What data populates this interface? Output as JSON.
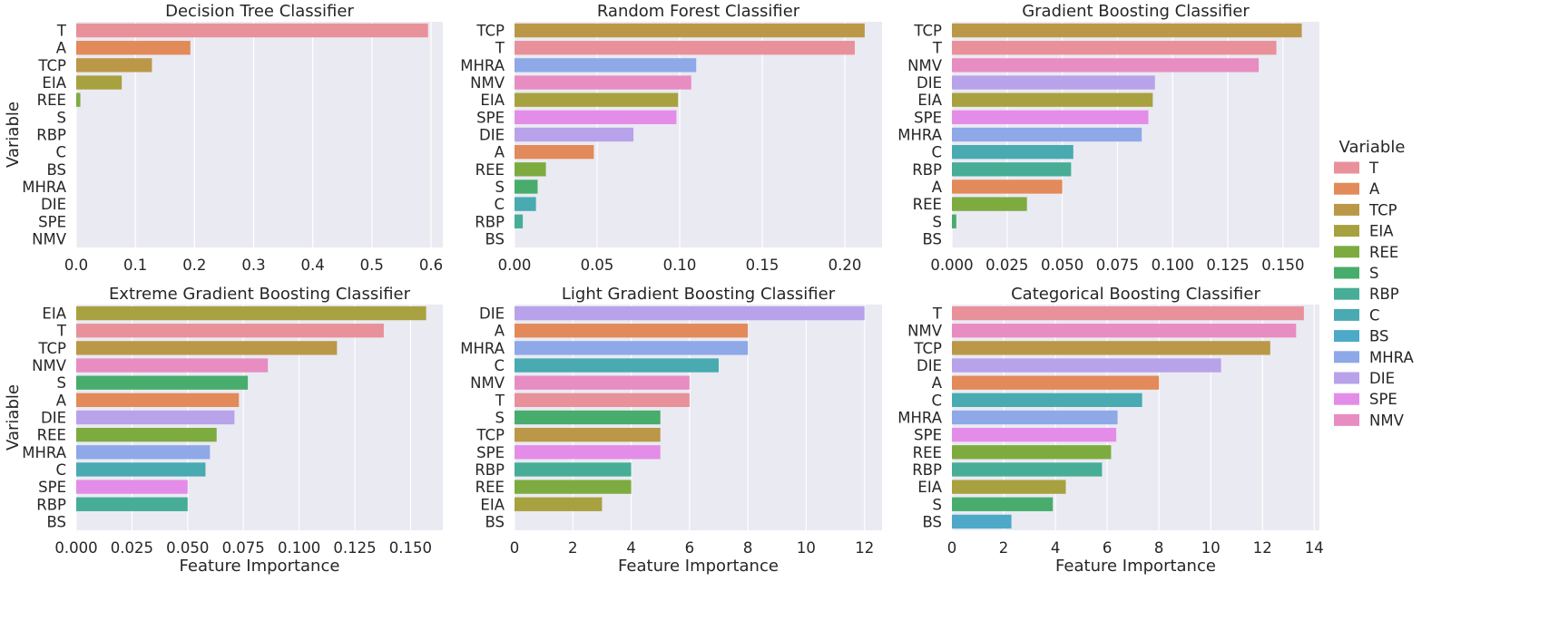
{
  "legend": {
    "title": "Variable",
    "items": [
      "T",
      "A",
      "TCP",
      "EIA",
      "REE",
      "S",
      "RBP",
      "C",
      "BS",
      "MHRA",
      "DIE",
      "SPE",
      "NMV"
    ]
  },
  "colors": {
    "T": "#e8919b",
    "A": "#e28a59",
    "TCP": "#bb9847",
    "EIA": "#a8a13f",
    "REE": "#7eab40",
    "S": "#48ad6c",
    "RBP": "#47ad97",
    "C": "#49aab1",
    "BS": "#4ea9c9",
    "MHRA": "#8ea8e8",
    "DIE": "#b8a2ea",
    "SPE": "#e48de8",
    "NMV": "#e78dc2"
  },
  "chart_data": [
    {
      "type": "bar",
      "orientation": "horizontal",
      "title": "Decision Tree Classifier",
      "xlabel": "",
      "ylabel": "Variable",
      "xlim": [
        0,
        0.62
      ],
      "xticks": [
        0.0,
        0.1,
        0.2,
        0.3,
        0.4,
        0.5,
        0.6
      ],
      "xtick_labels": [
        "0.0",
        "0.1",
        "0.2",
        "0.3",
        "0.4",
        "0.5",
        "0.6"
      ],
      "categories": [
        "T",
        "A",
        "TCP",
        "EIA",
        "REE",
        "S",
        "RBP",
        "C",
        "BS",
        "MHRA",
        "DIE",
        "SPE",
        "NMV"
      ],
      "values": [
        0.595,
        0.193,
        0.128,
        0.077,
        0.007,
        0,
        0,
        0,
        0,
        0,
        0,
        0,
        0
      ]
    },
    {
      "type": "bar",
      "orientation": "horizontal",
      "title": "Random Forest Classifier",
      "xlabel": "",
      "ylabel": "",
      "xlim": [
        0,
        0.2225
      ],
      "xticks": [
        0.0,
        0.05,
        0.1,
        0.15,
        0.2
      ],
      "xtick_labels": [
        "0.00",
        "0.05",
        "0.10",
        "0.15",
        "0.20"
      ],
      "categories": [
        "TCP",
        "T",
        "MHRA",
        "NMV",
        "EIA",
        "SPE",
        "DIE",
        "A",
        "REE",
        "S",
        "C",
        "RBP",
        "BS"
      ],
      "values": [
        0.212,
        0.206,
        0.11,
        0.107,
        0.099,
        0.098,
        0.072,
        0.048,
        0.019,
        0.014,
        0.013,
        0.005,
        0
      ]
    },
    {
      "type": "bar",
      "orientation": "horizontal",
      "title": "Gradient Boosting Classifier",
      "xlabel": "",
      "ylabel": "",
      "xlim": [
        0,
        0.1665
      ],
      "xticks": [
        0.0,
        0.025,
        0.05,
        0.075,
        0.1,
        0.125,
        0.15
      ],
      "xtick_labels": [
        "0.000",
        "0.025",
        "0.050",
        "0.075",
        "0.100",
        "0.125",
        "0.150"
      ],
      "categories": [
        "TCP",
        "T",
        "NMV",
        "DIE",
        "EIA",
        "SPE",
        "MHRA",
        "C",
        "RBP",
        "A",
        "REE",
        "S",
        "BS"
      ],
      "values": [
        0.1585,
        0.147,
        0.139,
        0.092,
        0.091,
        0.089,
        0.086,
        0.055,
        0.054,
        0.05,
        0.034,
        0.002,
        0
      ]
    },
    {
      "type": "bar",
      "orientation": "horizontal",
      "title": "Extreme Gradient Boosting Classifier",
      "xlabel": "Feature Importance",
      "ylabel": "Variable",
      "xlim": [
        0,
        0.1645
      ],
      "xticks": [
        0.0,
        0.025,
        0.05,
        0.075,
        0.1,
        0.125,
        0.15
      ],
      "xtick_labels": [
        "0.000",
        "0.025",
        "0.050",
        "0.075",
        "0.100",
        "0.125",
        "0.150"
      ],
      "categories": [
        "EIA",
        "T",
        "TCP",
        "NMV",
        "S",
        "A",
        "DIE",
        "REE",
        "MHRA",
        "C",
        "SPE",
        "RBP",
        "BS"
      ],
      "values": [
        0.157,
        0.138,
        0.117,
        0.086,
        0.077,
        0.073,
        0.071,
        0.063,
        0.06,
        0.058,
        0.05,
        0.05,
        0
      ]
    },
    {
      "type": "bar",
      "orientation": "horizontal",
      "title": "Light Gradient Boosting Classifier",
      "xlabel": "Feature Importance",
      "ylabel": "",
      "xlim": [
        0,
        12.6
      ],
      "xticks": [
        0,
        2,
        4,
        6,
        8,
        10,
        12
      ],
      "xtick_labels": [
        "0",
        "2",
        "4",
        "6",
        "8",
        "10",
        "12"
      ],
      "categories": [
        "DIE",
        "A",
        "MHRA",
        "C",
        "NMV",
        "T",
        "S",
        "TCP",
        "SPE",
        "RBP",
        "REE",
        "EIA",
        "BS"
      ],
      "values": [
        12,
        8,
        8,
        7,
        6,
        6,
        5,
        5,
        5,
        4,
        4,
        3,
        0
      ]
    },
    {
      "type": "bar",
      "orientation": "horizontal",
      "title": "Categorical Boosting Classifier",
      "xlabel": "Feature Importance",
      "ylabel": "",
      "xlim": [
        0,
        14.2
      ],
      "xticks": [
        0,
        2,
        4,
        6,
        8,
        10,
        12,
        14
      ],
      "xtick_labels": [
        "0",
        "2",
        "4",
        "6",
        "8",
        "10",
        "12",
        "14"
      ],
      "categories": [
        "T",
        "NMV",
        "TCP",
        "DIE",
        "A",
        "C",
        "MHRA",
        "SPE",
        "REE",
        "RBP",
        "EIA",
        "S",
        "BS"
      ],
      "values": [
        13.6,
        13.3,
        12.3,
        10.4,
        8.0,
        7.35,
        6.4,
        6.35,
        6.15,
        5.8,
        4.4,
        3.9,
        2.3
      ]
    }
  ]
}
